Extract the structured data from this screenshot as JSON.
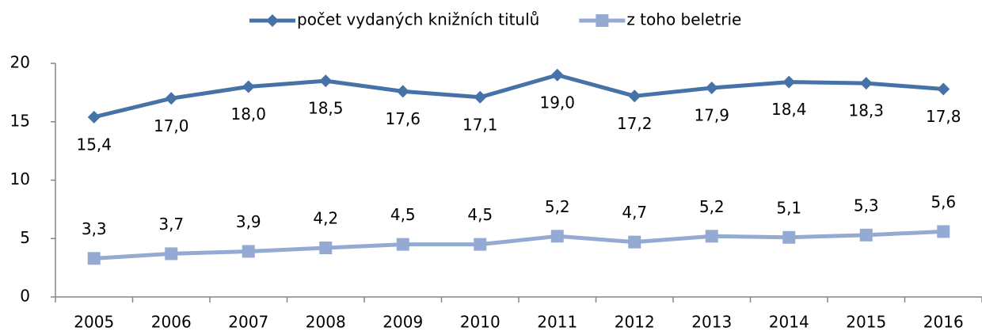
{
  "chart_data": {
    "type": "line",
    "categories": [
      "2005",
      "2006",
      "2007",
      "2008",
      "2009",
      "2010",
      "2011",
      "2012",
      "2013",
      "2014",
      "2015",
      "2016"
    ],
    "series": [
      {
        "name": "počet vydaných knižních titulů",
        "color": "#4572a7",
        "marker": "diamond",
        "values": [
          15.4,
          17.0,
          18.0,
          18.5,
          17.6,
          17.1,
          19.0,
          17.2,
          17.9,
          18.4,
          18.3,
          17.8
        ],
        "value_labels": [
          "15,4",
          "17,0",
          "18,0",
          "18,5",
          "17,6",
          "17,1",
          "19,0",
          "17,2",
          "17,9",
          "18,4",
          "18,3",
          "17,8"
        ]
      },
      {
        "name": "z toho beletrie",
        "color": "#95aad2",
        "marker": "square",
        "values": [
          3.3,
          3.7,
          3.9,
          4.2,
          4.5,
          4.5,
          5.2,
          4.7,
          5.2,
          5.1,
          5.3,
          5.6
        ],
        "value_labels": [
          "3,3",
          "3,7",
          "3,9",
          "4,2",
          "4,5",
          "4,5",
          "5,2",
          "4,7",
          "5,2",
          "5,1",
          "5,3",
          "5,6"
        ]
      }
    ],
    "ylim": [
      0,
      20
    ],
    "yticks": [
      0,
      5,
      10,
      15,
      20
    ],
    "grid": false,
    "legend": "top"
  }
}
